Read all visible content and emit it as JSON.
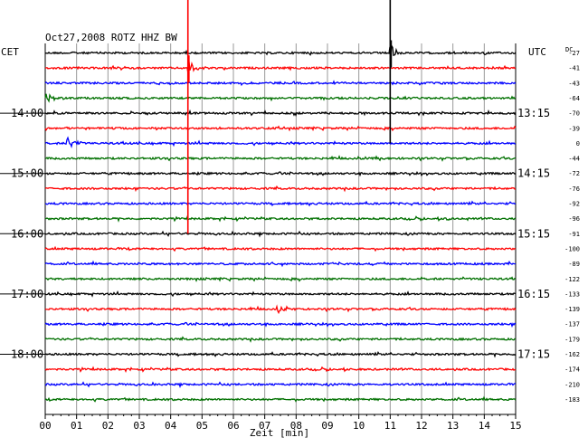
{
  "chart_data": {
    "type": "line",
    "title": "Oct27,2008   ROTZ HHZ BW",
    "left_zone_label": "CET",
    "right_zone_label": "UTC",
    "dc_header": "DC",
    "xlabel": "Zeit [min]",
    "xlim": [
      0,
      15
    ],
    "x_ticks": [
      "00",
      "01",
      "02",
      "03",
      "04",
      "05",
      "06",
      "07",
      "08",
      "09",
      "10",
      "11",
      "12",
      "13",
      "14",
      "15"
    ],
    "cet_hour_labels": [
      {
        "trace": 4,
        "label": "14:00"
      },
      {
        "trace": 8,
        "label": "15:00"
      },
      {
        "trace": 12,
        "label": "16:00"
      },
      {
        "trace": 16,
        "label": "17:00"
      },
      {
        "trace": 20,
        "label": "18:00"
      }
    ],
    "utc_labels": [
      {
        "trace": 4,
        "label": "13:15"
      },
      {
        "trace": 8,
        "label": "14:15"
      },
      {
        "trace": 12,
        "label": "15:15"
      },
      {
        "trace": 16,
        "label": "16:15"
      },
      {
        "trace": 20,
        "label": "17:15"
      }
    ],
    "trace_colors": [
      "#000000",
      "#ff0000",
      "#0000ff",
      "#007000"
    ],
    "dc_offsets": [
      "-27",
      "-41",
      "-43",
      "-64",
      "-70",
      "-39",
      "0",
      "-44",
      "-72",
      "-76",
      "-92",
      "-96",
      "-91",
      "-100",
      "-89",
      "-122",
      "-133",
      "-139",
      "-137",
      "-179",
      "-162",
      "-174",
      "-210",
      "-183"
    ],
    "events": [
      {
        "trace": 0,
        "minute": 11.0,
        "amplitude": "very-large",
        "spike_top": "above-plot",
        "spike_bottom_trace": 6
      },
      {
        "trace": 1,
        "minute": 4.55,
        "amplitude": "very-large",
        "spike_top": "above-plot",
        "spike_bottom_trace": 12
      },
      {
        "trace": 3,
        "minute": 0.05,
        "amplitude": "medium"
      },
      {
        "trace": 6,
        "minute": 0.7,
        "amplitude": "medium"
      },
      {
        "trace": 11,
        "minute": 12.8,
        "amplitude": "small"
      },
      {
        "trace": 17,
        "minute": 7.4,
        "amplitude": "small"
      }
    ]
  }
}
